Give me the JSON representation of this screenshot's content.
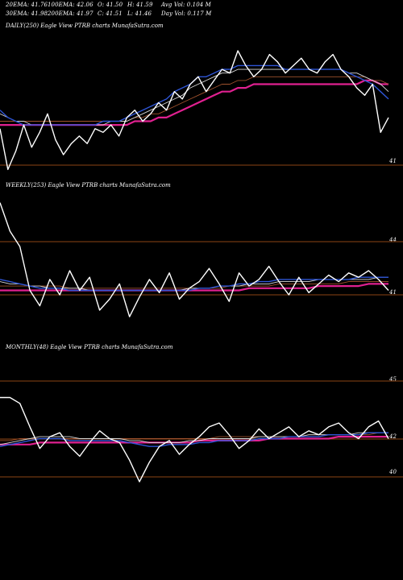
{
  "header": {
    "row1": [
      "20EMA: 41.76",
      "100EMA: 42.06",
      "O: 41.50",
      "H: 41.59",
      "Avg Vol: 0.104 M"
    ],
    "row2": [
      "30EMA: 41.98",
      "200EMA: 41.97",
      "C: 41.51",
      "L: 41.46",
      "Day Vol: 0.117 M"
    ]
  },
  "colors": {
    "background": "#000000",
    "price": "#ffffff",
    "ema_blue": "#2e55d6",
    "ema_white": "#d8d8d8",
    "ema_brown": "#a0522d",
    "ema_pink": "#e02090",
    "level_line": "#8b4513"
  },
  "chart_data": [
    {
      "type": "line",
      "title": "DAILY(250) Eagle   View  PTRB charts MunafaSutra.com",
      "level_labels": [
        "41"
      ],
      "series": [
        {
          "values": [
            41.4,
            40.3,
            40.8,
            41.5,
            40.9,
            41.3,
            41.8,
            41.1,
            40.7,
            41.0,
            41.2,
            41.0,
            41.4,
            41.3,
            41.5,
            41.2,
            41.7,
            41.9,
            41.6,
            41.8,
            42.1,
            41.9,
            42.4,
            42.2,
            42.6,
            42.8,
            42.4,
            42.7,
            43.0,
            42.9,
            43.5,
            43.1,
            42.8,
            43.0,
            43.4,
            43.2,
            42.9,
            43.1,
            43.3,
            43.0,
            42.9,
            43.2,
            43.4,
            43.0,
            42.8,
            42.5,
            42.3,
            42.6,
            41.3,
            41.7
          ]
        },
        {
          "values": [
            41.9,
            41.7,
            41.6,
            41.5,
            41.5,
            41.5,
            41.5,
            41.5,
            41.5,
            41.5,
            41.5,
            41.5,
            41.5,
            41.6,
            41.6,
            41.6,
            41.7,
            41.8,
            41.9,
            42.0,
            42.1,
            42.2,
            42.4,
            42.5,
            42.6,
            42.8,
            42.8,
            42.9,
            43.0,
            43.0,
            43.1,
            43.1,
            43.1,
            43.1,
            43.1,
            43.1,
            43.0,
            43.0,
            43.0,
            43.0,
            43.0,
            43.0,
            43.0,
            43.0,
            42.9,
            42.8,
            42.7,
            42.6,
            42.4,
            42.2
          ]
        },
        {
          "values": [
            41.8,
            41.7,
            41.6,
            41.6,
            41.5,
            41.5,
            41.5,
            41.5,
            41.5,
            41.5,
            41.5,
            41.5,
            41.5,
            41.5,
            41.6,
            41.6,
            41.6,
            41.7,
            41.8,
            41.9,
            42.0,
            42.1,
            42.2,
            42.3,
            42.5,
            42.6,
            42.7,
            42.8,
            42.9,
            42.9,
            43.0,
            43.0,
            43.0,
            43.0,
            43.0,
            43.0,
            43.0,
            43.0,
            43.0,
            43.0,
            43.0,
            43.0,
            43.0,
            43.0,
            42.9,
            42.9,
            42.8,
            42.7,
            42.6,
            42.4
          ]
        },
        {
          "values": [
            41.6,
            41.6,
            41.6,
            41.6,
            41.6,
            41.6,
            41.6,
            41.6,
            41.6,
            41.6,
            41.6,
            41.6,
            41.6,
            41.6,
            41.6,
            41.6,
            41.6,
            41.7,
            41.7,
            41.8,
            41.8,
            41.9,
            42.0,
            42.1,
            42.2,
            42.3,
            42.4,
            42.5,
            42.6,
            42.6,
            42.7,
            42.7,
            42.8,
            42.8,
            42.8,
            42.8,
            42.8,
            42.8,
            42.8,
            42.8,
            42.8,
            42.8,
            42.8,
            42.8,
            42.8,
            42.8,
            42.8,
            42.7,
            42.7,
            42.6
          ]
        },
        {
          "values": [
            41.5,
            41.5,
            41.5,
            41.5,
            41.5,
            41.5,
            41.5,
            41.5,
            41.5,
            41.5,
            41.5,
            41.5,
            41.5,
            41.5,
            41.5,
            41.5,
            41.5,
            41.6,
            41.6,
            41.6,
            41.7,
            41.7,
            41.8,
            41.9,
            42.0,
            42.1,
            42.2,
            42.3,
            42.4,
            42.4,
            42.5,
            42.5,
            42.6,
            42.6,
            42.6,
            42.6,
            42.6,
            42.6,
            42.6,
            42.6,
            42.6,
            42.6,
            42.6,
            42.6,
            42.6,
            42.6,
            42.7,
            42.7,
            42.6,
            42.6
          ]
        }
      ],
      "ylim": [
        40.2,
        44.0
      ]
    },
    {
      "type": "line",
      "title": "WEEKLY(253) Eagle   View  PTRB charts MunafaSutra.com",
      "level_labels": [
        "44",
        "41"
      ],
      "series": [
        {
          "values": [
            45.5,
            44.2,
            43.5,
            41.5,
            40.8,
            42.0,
            41.3,
            42.4,
            41.5,
            42.1,
            40.6,
            41.1,
            41.8,
            40.3,
            41.2,
            42.0,
            41.4,
            42.3,
            41.1,
            41.6,
            41.9,
            42.5,
            41.8,
            41.0,
            42.3,
            41.7,
            42.0,
            42.6,
            41.9,
            41.3,
            42.1,
            41.4,
            41.8,
            42.2,
            41.9,
            42.3,
            42.1,
            42.4,
            42.0,
            41.5
          ]
        },
        {
          "values": [
            42.0,
            41.9,
            41.8,
            41.7,
            41.6,
            41.6,
            41.6,
            41.5,
            41.5,
            41.5,
            41.5,
            41.5,
            41.5,
            41.5,
            41.5,
            41.5,
            41.5,
            41.5,
            41.5,
            41.5,
            41.6,
            41.6,
            41.7,
            41.7,
            41.8,
            41.8,
            41.9,
            41.9,
            42.0,
            42.0,
            42.0,
            42.0,
            42.0,
            42.0,
            42.0,
            42.0,
            42.1,
            42.1,
            42.1,
            42.1
          ]
        },
        {
          "values": [
            41.9,
            41.8,
            41.8,
            41.7,
            41.7,
            41.6,
            41.6,
            41.6,
            41.6,
            41.5,
            41.5,
            41.5,
            41.5,
            41.5,
            41.5,
            41.5,
            41.5,
            41.5,
            41.5,
            41.6,
            41.6,
            41.6,
            41.7,
            41.7,
            41.7,
            41.8,
            41.8,
            41.8,
            41.9,
            41.9,
            41.9,
            41.9,
            42.0,
            42.0,
            42.0,
            42.0,
            42.0,
            42.0,
            42.1,
            42.1
          ]
        },
        {
          "values": [
            41.7,
            41.7,
            41.7,
            41.7,
            41.7,
            41.7,
            41.7,
            41.6,
            41.6,
            41.6,
            41.6,
            41.6,
            41.6,
            41.6,
            41.6,
            41.6,
            41.6,
            41.6,
            41.6,
            41.6,
            41.6,
            41.6,
            41.6,
            41.7,
            41.7,
            41.7,
            41.7,
            41.7,
            41.8,
            41.8,
            41.8,
            41.8,
            41.8,
            41.8,
            41.8,
            41.9,
            41.9,
            41.9,
            41.9,
            41.9
          ]
        },
        {
          "values": [
            41.5,
            41.5,
            41.5,
            41.5,
            41.5,
            41.5,
            41.5,
            41.5,
            41.5,
            41.5,
            41.5,
            41.5,
            41.5,
            41.5,
            41.5,
            41.5,
            41.5,
            41.5,
            41.5,
            41.5,
            41.5,
            41.5,
            41.5,
            41.5,
            41.5,
            41.6,
            41.6,
            41.6,
            41.6,
            41.6,
            41.6,
            41.6,
            41.7,
            41.7,
            41.7,
            41.7,
            41.7,
            41.8,
            41.8,
            41.8
          ]
        }
      ],
      "ylim": [
        39.5,
        46.0
      ]
    },
    {
      "type": "line",
      "title": "MONTHLY(48) Eagle   View  PTRB charts MunafaSutra.com",
      "level_labels": [
        "45",
        "42",
        "40"
      ],
      "series": [
        {
          "values": [
            43.8,
            43.8,
            43.5,
            42.3,
            41.2,
            41.8,
            42.0,
            41.3,
            40.8,
            41.5,
            42.1,
            41.7,
            41.5,
            40.6,
            39.5,
            40.5,
            41.3,
            41.6,
            40.9,
            41.4,
            41.8,
            42.3,
            42.5,
            41.9,
            41.2,
            41.6,
            42.2,
            41.7,
            42.0,
            42.3,
            41.8,
            42.1,
            41.9,
            42.3,
            42.5,
            42.0,
            41.7,
            42.3,
            42.6,
            41.7
          ]
        },
        {
          "values": [
            41.3,
            41.4,
            41.5,
            41.6,
            41.7,
            41.7,
            41.7,
            41.6,
            41.6,
            41.6,
            41.6,
            41.6,
            41.6,
            41.5,
            41.4,
            41.3,
            41.3,
            41.4,
            41.4,
            41.4,
            41.5,
            41.5,
            41.6,
            41.6,
            41.6,
            41.6,
            41.7,
            41.7,
            41.7,
            41.8,
            41.8,
            41.8,
            41.8,
            41.9,
            41.9,
            41.9,
            41.9,
            42.0,
            42.0,
            42.0
          ]
        },
        {
          "values": [
            41.4,
            41.5,
            41.6,
            41.7,
            41.8,
            41.8,
            41.8,
            41.8,
            41.7,
            41.7,
            41.7,
            41.7,
            41.7,
            41.6,
            41.6,
            41.5,
            41.5,
            41.5,
            41.5,
            41.6,
            41.6,
            41.7,
            41.7,
            41.7,
            41.7,
            41.7,
            41.8,
            41.8,
            41.8,
            41.8,
            41.8,
            41.9,
            41.9,
            41.9,
            41.9,
            41.9,
            42.0,
            42.0,
            42.0,
            42.0
          ]
        },
        {
          "values": [
            41.6,
            41.6,
            41.7,
            41.7,
            41.7,
            41.7,
            41.7,
            41.7,
            41.7,
            41.7,
            41.7,
            41.7,
            41.7,
            41.7,
            41.7,
            41.7,
            41.7,
            41.7,
            41.7,
            41.7,
            41.7,
            41.7,
            41.8,
            41.8,
            41.8,
            41.8,
            41.8,
            41.8,
            41.8,
            41.8,
            41.8,
            41.9,
            41.9,
            41.9,
            41.9,
            41.9,
            41.9,
            41.9,
            42.0,
            42.0
          ]
        },
        {
          "values": [
            41.4,
            41.4,
            41.4,
            41.4,
            41.5,
            41.5,
            41.5,
            41.5,
            41.5,
            41.5,
            41.5,
            41.5,
            41.5,
            41.5,
            41.5,
            41.5,
            41.5,
            41.5,
            41.5,
            41.5,
            41.6,
            41.6,
            41.6,
            41.6,
            41.6,
            41.6,
            41.6,
            41.7,
            41.7,
            41.7,
            41.7,
            41.7,
            41.7,
            41.7,
            41.8,
            41.8,
            41.8,
            41.8,
            41.8,
            41.8
          ]
        }
      ],
      "ylim": [
        38.8,
        46.0
      ]
    }
  ]
}
